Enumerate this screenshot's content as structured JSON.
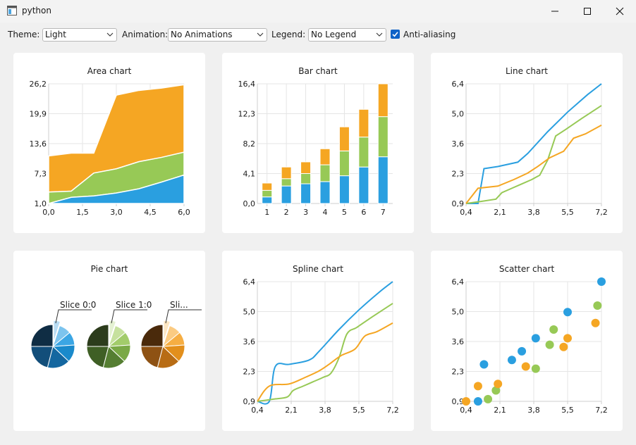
{
  "window": {
    "title": "python"
  },
  "toolbar": {
    "theme_label": "Theme:",
    "theme_value": "Light",
    "animation_label": "Animation:",
    "animation_value": "No Animations",
    "legend_label": "Legend:",
    "legend_value": "No Legend",
    "antialias_label": "Anti-aliasing",
    "antialias_checked": true
  },
  "colors": {
    "blue": "#2a9fe0",
    "green": "#97c956",
    "orange": "#f5a623"
  },
  "chart_data": [
    {
      "type": "area",
      "title": "Area chart",
      "x": [
        0.0,
        1.0,
        2.0,
        3.0,
        4.0,
        5.0,
        6.0
      ],
      "x_ticks": [
        "0,0",
        "1,5",
        "3,0",
        "4,5",
        "6,0"
      ],
      "y_ticks": [
        "1,0",
        "7,3",
        "13,6",
        "19,9",
        "26,2"
      ],
      "xlim": [
        0,
        6
      ],
      "ylim": [
        1.0,
        26.2
      ],
      "series": [
        {
          "values": [
            1.0,
            2.3,
            2.6,
            3.2,
            4.1,
            5.5,
            7.0
          ]
        },
        {
          "values": [
            3.4,
            3.6,
            7.4,
            8.3,
            9.8,
            10.7,
            11.8
          ]
        },
        {
          "values": [
            11.0,
            11.6,
            11.6,
            23.8,
            24.8,
            25.3,
            26.0
          ]
        }
      ]
    },
    {
      "type": "bar",
      "title": "Bar chart",
      "categories": [
        "1",
        "2",
        "3",
        "4",
        "5",
        "6",
        "7"
      ],
      "y_ticks": [
        "0,0",
        "4,1",
        "8,2",
        "12,3",
        "16,4"
      ],
      "ylim": [
        0,
        16.4
      ],
      "series": [
        {
          "values": [
            0.9,
            2.4,
            2.7,
            3.0,
            3.8,
            5.0,
            6.4
          ]
        },
        {
          "values": [
            0.9,
            1.0,
            1.4,
            2.3,
            3.4,
            4.1,
            5.5
          ]
        },
        {
          "values": [
            1.0,
            1.6,
            1.6,
            2.2,
            3.3,
            3.8,
            4.5
          ]
        }
      ]
    },
    {
      "type": "line",
      "title": "Line chart",
      "x_ticks": [
        "0,4",
        "2,1",
        "3,8",
        "5,5",
        "7,2"
      ],
      "y_ticks": [
        "0,9",
        "2,3",
        "3,6",
        "5,0",
        "6,4"
      ],
      "xlim": [
        0.4,
        7.2
      ],
      "ylim": [
        0.9,
        6.4
      ],
      "series": [
        {
          "x": [
            0.4,
            1.0,
            1.3,
            2.0,
            3.0,
            3.5,
            4.5,
            5.5,
            6.5,
            7.2
          ],
          "y": [
            0.9,
            0.9,
            2.5,
            2.6,
            2.8,
            3.2,
            4.2,
            5.1,
            5.9,
            6.4
          ]
        },
        {
          "x": [
            0.4,
            1.2,
            1.9,
            2.2,
            2.7,
            3.2,
            3.7,
            4.1,
            4.5,
            4.9,
            5.4,
            6.2,
            7.2
          ],
          "y": [
            0.9,
            1.0,
            1.1,
            1.4,
            1.6,
            1.8,
            2.0,
            2.2,
            2.9,
            4.0,
            4.3,
            4.8,
            5.4
          ]
        },
        {
          "x": [
            0.4,
            1.0,
            2.0,
            2.8,
            3.5,
            4.0,
            4.6,
            5.3,
            5.8,
            6.4,
            7.2
          ],
          "y": [
            0.9,
            1.6,
            1.7,
            2.0,
            2.3,
            2.6,
            3.0,
            3.3,
            3.9,
            4.1,
            4.5
          ]
        }
      ]
    },
    {
      "type": "pie",
      "title": "Pie chart",
      "labels": [
        "Slice 0:0",
        "Slice 1:0",
        "Sli..."
      ],
      "pies": [
        {
          "colors": [
            "#b7dcf4",
            "#7cc4ee",
            "#3ba6e4",
            "#1a8acb",
            "#1467a0",
            "#124e7a",
            "#0f2d44"
          ],
          "values": [
            5,
            9,
            10,
            13,
            17,
            21,
            25
          ]
        },
        {
          "colors": [
            "#e4f1d2",
            "#c6e19e",
            "#a2cc6a",
            "#7aa946",
            "#557e32",
            "#3f5f25",
            "#2c3c1c"
          ],
          "values": [
            5,
            9,
            10,
            13,
            17,
            21,
            25
          ]
        },
        {
          "colors": [
            "#fde6c2",
            "#fbcb82",
            "#f6ae43",
            "#e28f1c",
            "#b86c14",
            "#8e5213",
            "#4a2a0b"
          ],
          "values": [
            5,
            9,
            10,
            13,
            17,
            21,
            25
          ]
        }
      ]
    },
    {
      "type": "line",
      "title": "Spline chart",
      "x_ticks": [
        "0,4",
        "2,1",
        "3,8",
        "5,5",
        "7,2"
      ],
      "y_ticks": [
        "0,9",
        "2,3",
        "3,6",
        "5,0",
        "6,4"
      ],
      "xlim": [
        0.4,
        7.2
      ],
      "ylim": [
        0.9,
        6.4
      ],
      "series": [
        {
          "x": [
            0.4,
            1.0,
            1.3,
            2.0,
            3.0,
            3.5,
            4.5,
            5.5,
            6.5,
            7.2
          ],
          "y": [
            0.9,
            0.9,
            2.5,
            2.6,
            2.8,
            3.2,
            4.2,
            5.1,
            5.9,
            6.4
          ]
        },
        {
          "x": [
            0.4,
            1.2,
            1.9,
            2.2,
            2.7,
            3.2,
            3.7,
            4.1,
            4.5,
            4.9,
            5.4,
            6.2,
            7.2
          ],
          "y": [
            0.9,
            1.0,
            1.1,
            1.4,
            1.6,
            1.8,
            2.0,
            2.2,
            2.9,
            4.0,
            4.3,
            4.8,
            5.4
          ]
        },
        {
          "x": [
            0.4,
            1.0,
            2.0,
            2.8,
            3.5,
            4.0,
            4.6,
            5.3,
            5.8,
            6.4,
            7.2
          ],
          "y": [
            0.9,
            1.6,
            1.7,
            2.0,
            2.3,
            2.6,
            3.0,
            3.3,
            3.9,
            4.1,
            4.5
          ]
        }
      ]
    },
    {
      "type": "scatter",
      "title": "Scatter chart",
      "x_ticks": [
        "0,4",
        "2,1",
        "3,8",
        "5,5",
        "7,2"
      ],
      "y_ticks": [
        "0,9",
        "2,3",
        "3,6",
        "5,0",
        "6,4"
      ],
      "xlim": [
        0.4,
        7.2
      ],
      "ylim": [
        0.9,
        6.4
      ],
      "series": [
        {
          "x": [
            1.0,
            1.3,
            2.7,
            3.2,
            3.9,
            5.5,
            7.2
          ],
          "y": [
            0.9,
            2.6,
            2.8,
            3.2,
            3.8,
            5.0,
            6.4
          ]
        },
        {
          "x": [
            1.5,
            1.9,
            3.9,
            4.6,
            4.8,
            7.0
          ],
          "y": [
            1.0,
            1.4,
            2.4,
            3.5,
            4.2,
            5.3
          ]
        },
        {
          "x": [
            0.4,
            1.0,
            2.0,
            3.4,
            5.3,
            5.5,
            6.9
          ],
          "y": [
            0.9,
            1.6,
            1.7,
            2.5,
            3.4,
            3.8,
            4.5
          ]
        }
      ]
    }
  ]
}
